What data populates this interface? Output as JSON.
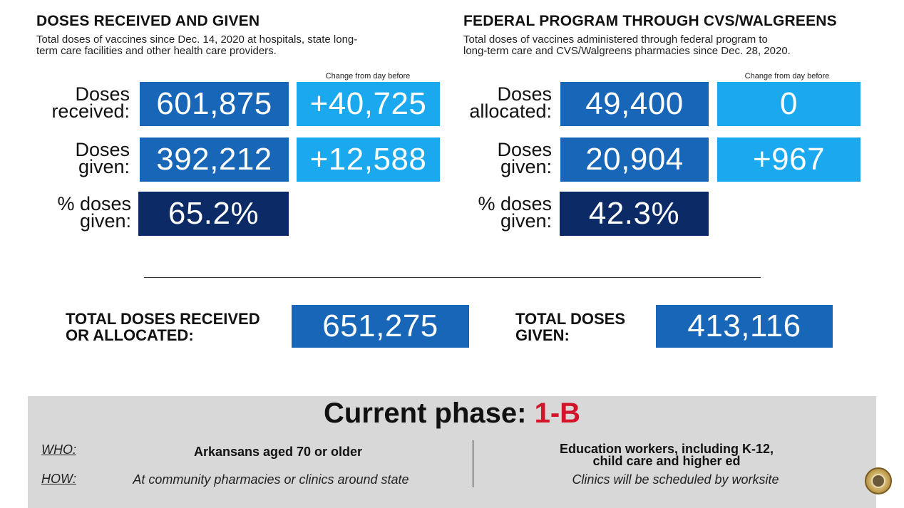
{
  "left": {
    "title": "DOSES RECEIVED AND GIVEN",
    "subtitle_line1": "Total doses of vaccines since Dec. 14, 2020 at hospitals, state long-",
    "subtitle_line2": "term care facilities and other health care providers.",
    "change_label": "Change from day before",
    "rows": [
      {
        "label_line1": "Doses",
        "label_line2": "received:",
        "value": "601,875",
        "change": "+40,725"
      },
      {
        "label_line1": "Doses",
        "label_line2": "given:",
        "value": "392,212",
        "change": "+12,588"
      },
      {
        "label_line1": "% doses",
        "label_line2": "given:",
        "value": "65.2%"
      }
    ]
  },
  "right": {
    "title": "FEDERAL PROGRAM THROUGH CVS/WALGREENS",
    "subtitle_line1": "Total doses of vaccines administered through federal program to",
    "subtitle_line2": "long-term care and CVS/Walgreens pharmacies since Dec. 28, 2020.",
    "change_label": "Change from day before",
    "rows": [
      {
        "label_line1": "Doses",
        "label_line2": "allocated:",
        "value": "49,400",
        "change": "0"
      },
      {
        "label_line1": "Doses",
        "label_line2": "given:",
        "value": "20,904",
        "change": "+967"
      },
      {
        "label_line1": "% doses",
        "label_line2": "given:",
        "value": "42.3%"
      }
    ]
  },
  "totals": {
    "received_label_line1": "TOTAL DOSES RECEIVED",
    "received_label_line2": "OR ALLOCATED:",
    "received_value": "651,275",
    "given_label_line1": "TOTAL DOSES",
    "given_label_line2": "GIVEN:",
    "given_value": "413,116"
  },
  "phase": {
    "title_prefix": "Current phase:",
    "title_value": "1-B",
    "who_key": "WHO:",
    "how_key": "HOW:",
    "who_left": "Arkansans aged 70 or older",
    "how_left": "At community pharmacies or clinics around state",
    "who_right_line1": "Education workers, including K-12,",
    "who_right_line2": "child care and higher ed",
    "how_right": "Clinics will be scheduled by worksite"
  },
  "colors": {
    "dark_blue": "#1766b8",
    "light_blue": "#1aa8ef",
    "navy": "#0c2a66",
    "phase_red": "#d4142a",
    "phase_panel": "#d8d8d8"
  },
  "icons": {
    "seal": "arkansas-state-seal-icon"
  }
}
